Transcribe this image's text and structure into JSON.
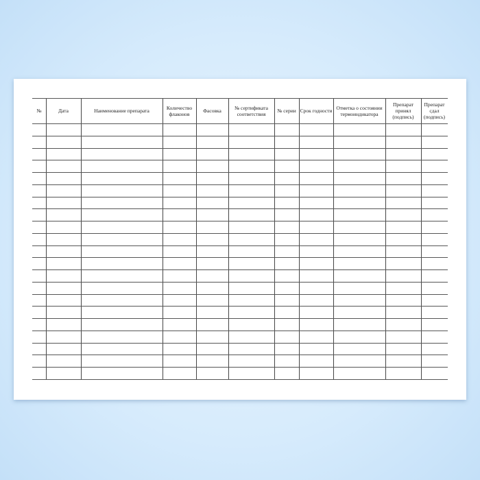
{
  "table": {
    "headers": [
      "№",
      "Дата",
      "Наименование препарата",
      "Количество флаконов",
      "Фасовка",
      "№ сертификата соответствия",
      "№ серии",
      "Срок годности",
      "Отметка о состоянии термоиндикатора",
      "Препарат принял (подпись)",
      "Препарат сдал (подпись)"
    ],
    "row_count": 21
  }
}
